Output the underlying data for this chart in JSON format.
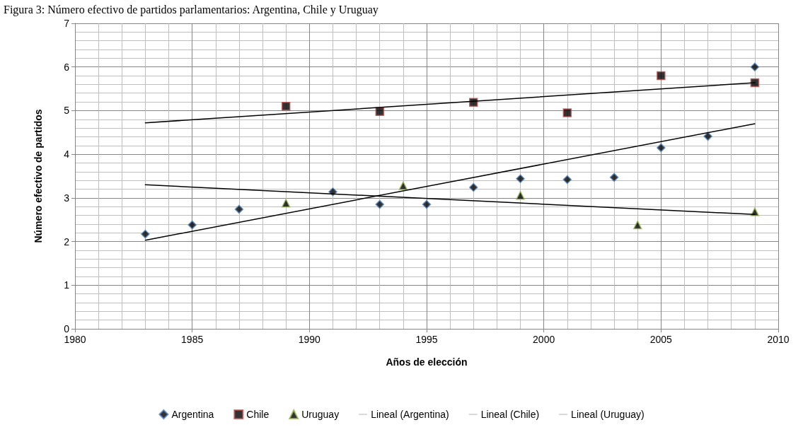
{
  "chart_data": {
    "type": "scatter",
    "title": "Figura 3: Número efectivo de partidos parlamentarios: Argentina, Chile y Uruguay",
    "xlabel": "Años de elección",
    "ylabel": "Número efectivo de partidos",
    "xlim": [
      1980,
      2010
    ],
    "xticks": [
      1980,
      1985,
      1990,
      1995,
      2000,
      2005,
      2010
    ],
    "ylim": [
      0,
      7
    ],
    "yticks": [
      0,
      1,
      2,
      3,
      4,
      5,
      6,
      7
    ],
    "grid": true,
    "legend": "bottom",
    "series": [
      {
        "name": "Argentina",
        "color": "#4f81bd",
        "marker": "diamond",
        "x": [
          1983,
          1985,
          1987,
          1989,
          1991,
          1993,
          1995,
          1997,
          1999,
          2001,
          2003,
          2005,
          2007,
          2009
        ],
        "values": [
          2.17,
          2.38,
          2.74,
          null,
          3.14,
          2.85,
          2.85,
          3.24,
          3.44,
          3.42,
          3.47,
          4.15,
          4.41,
          6.0
        ]
      },
      {
        "name": "Chile",
        "color": "#c0504d",
        "marker": "square",
        "x": [
          1989,
          1993,
          1997,
          2001,
          2005,
          2009
        ],
        "values": [
          5.1,
          4.98,
          5.19,
          4.95,
          5.8,
          5.64
        ]
      },
      {
        "name": "Uruguay",
        "color": "#9bbb59",
        "marker": "triangle",
        "x": [
          1989,
          1994,
          1999,
          2004,
          2009
        ],
        "values": [
          2.88,
          3.28,
          3.06,
          2.38,
          2.68
        ]
      },
      {
        "name": "Lineal (Argentina)",
        "type": "line",
        "color": "#000000",
        "marker": "none",
        "x": [
          1983,
          2009
        ],
        "values": [
          2.03,
          4.7
        ]
      },
      {
        "name": "Lineal (Chile)",
        "type": "line",
        "color": "#000000",
        "marker": "none",
        "x": [
          1983,
          2009
        ],
        "values": [
          4.72,
          5.64
        ]
      },
      {
        "name": "Lineal (Uruguay)",
        "type": "line",
        "color": "#000000",
        "marker": "none",
        "x": [
          1983,
          2009
        ],
        "values": [
          3.3,
          2.62
        ]
      }
    ]
  }
}
